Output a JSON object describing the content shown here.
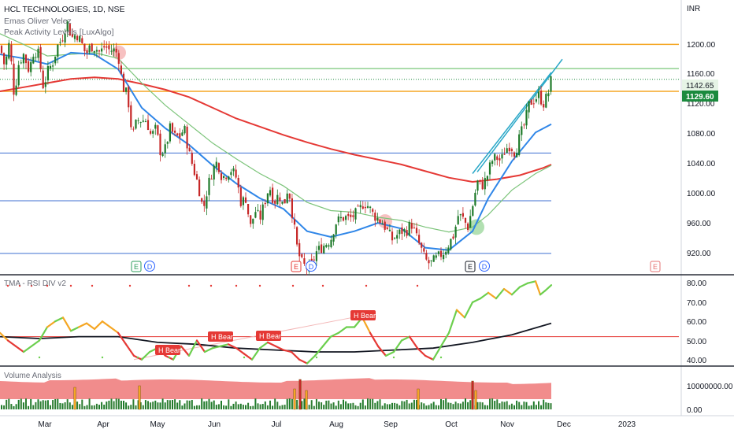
{
  "header": {
    "title": "HCL TECHNOLOGIES, 1D, NSE",
    "indicator_1": "Emas Oliver Velez",
    "indicator_2": "Peak Activity Levels [LuxAlgo]"
  },
  "colors": {
    "up": "#1f7a2a",
    "down": "#c62828",
    "ema_fast": "#2f86e8",
    "ema_mid": "#7cc47a",
    "ema_slow": "#e53935",
    "level_orange": "#f5a623",
    "level_green": "#8fd18f",
    "level_blue": "#3f6fd1",
    "channel": "#2ba8c8",
    "rsi_mid": "#e53935",
    "last_price_bg": "#1b8a3e",
    "level_label_bg": "#e6f4e6",
    "volume_band": "#f08080"
  },
  "price_pane": {
    "currency": "INR",
    "y_ticks": [
      "1200.00",
      "1160.00",
      "1120.00",
      "1080.00",
      "1040.00",
      "1000.00",
      "960.00",
      "920.00"
    ],
    "last_price": "1129.60",
    "level_label": "1142.65",
    "earnings_markers": [
      "E",
      "E",
      "E",
      "E"
    ],
    "dividend_markers": [
      "D",
      "D",
      "D"
    ]
  },
  "rsi_pane": {
    "title": "TMA - RSI DIV v2",
    "y_ticks": [
      "80.00",
      "70.00",
      "60.00",
      "50.00",
      "40.00"
    ],
    "labels": [
      "H Bear",
      "H Bear",
      "H Bear",
      "H Bear"
    ]
  },
  "volume_pane": {
    "title": "Volume Analysis",
    "y_ticks": [
      "10000000.00",
      "0.00"
    ]
  },
  "x_axis": {
    "labels": [
      "Mar",
      "Apr",
      "May",
      "Jun",
      "Jul",
      "Aug",
      "Sep",
      "Oct",
      "Nov",
      "Dec",
      "2023"
    ]
  },
  "chart_data": {
    "type": "candlestick",
    "title": "HCL TECHNOLOGIES, 1D, NSE",
    "ylim": [
      893,
      1226
    ],
    "horizontal_levels": [
      {
        "value": 1172,
        "color": "orange"
      },
      {
        "value": 1142.65,
        "color": "green"
      },
      {
        "value": 1115,
        "color": "orange"
      },
      {
        "value": 1040,
        "color": "blue"
      },
      {
        "value": 982,
        "color": "blue"
      },
      {
        "value": 918,
        "color": "blue"
      }
    ],
    "close_path": [
      [
        0,
        1170
      ],
      [
        6,
        1145
      ],
      [
        12,
        1175
      ],
      [
        18,
        1110
      ],
      [
        24,
        1150
      ],
      [
        30,
        1160
      ],
      [
        37,
        1140
      ],
      [
        43,
        1165
      ],
      [
        49,
        1160
      ],
      [
        55,
        1120
      ],
      [
        61,
        1140
      ],
      [
        67,
        1150
      ],
      [
        73,
        1170
      ],
      [
        79,
        1180
      ],
      [
        85,
        1200
      ],
      [
        91,
        1180
      ],
      [
        97,
        1185
      ],
      [
        103,
        1175
      ],
      [
        109,
        1160
      ],
      [
        115,
        1170
      ],
      [
        121,
        1168
      ],
      [
        127,
        1162
      ],
      [
        133,
        1170
      ],
      [
        139,
        1165
      ],
      [
        145,
        1165
      ],
      [
        150,
        1160
      ],
      [
        156,
        1120
      ],
      [
        162,
        1110
      ],
      [
        168,
        1060
      ],
      [
        174,
        1080
      ],
      [
        180,
        1080
      ],
      [
        186,
        1080
      ],
      [
        192,
        1060
      ],
      [
        198,
        1070
      ],
      [
        204,
        1040
      ],
      [
        210,
        1045
      ],
      [
        216,
        1070
      ],
      [
        222,
        1060
      ],
      [
        228,
        1060
      ],
      [
        234,
        1070
      ],
      [
        240,
        1040
      ],
      [
        246,
        1020
      ],
      [
        252,
        1000
      ],
      [
        258,
        970
      ],
      [
        264,
        1000
      ],
      [
        270,
        1020
      ],
      [
        276,
        1030
      ],
      [
        282,
        1010
      ],
      [
        288,
        1015
      ],
      [
        294,
        1020
      ],
      [
        300,
        1010
      ],
      [
        306,
        980
      ],
      [
        312,
        985
      ],
      [
        318,
        950
      ],
      [
        324,
        970
      ],
      [
        330,
        960
      ],
      [
        336,
        980
      ],
      [
        342,
        1000
      ],
      [
        348,
        980
      ],
      [
        354,
        990
      ],
      [
        360,
        975
      ],
      [
        366,
        1000
      ],
      [
        372,
        960
      ],
      [
        378,
        920
      ],
      [
        384,
        905
      ],
      [
        390,
        900
      ],
      [
        396,
        905
      ],
      [
        402,
        920
      ],
      [
        408,
        925
      ],
      [
        414,
        930
      ],
      [
        420,
        935
      ],
      [
        426,
        955
      ],
      [
        432,
        960
      ],
      [
        438,
        962
      ],
      [
        444,
        960
      ],
      [
        450,
        965
      ],
      [
        456,
        970
      ],
      [
        462,
        980
      ],
      [
        468,
        975
      ],
      [
        474,
        965
      ],
      [
        480,
        960
      ],
      [
        486,
        955
      ],
      [
        492,
        945
      ],
      [
        498,
        935
      ],
      [
        504,
        940
      ],
      [
        510,
        945
      ],
      [
        516,
        945
      ],
      [
        522,
        955
      ],
      [
        528,
        940
      ],
      [
        534,
        925
      ],
      [
        540,
        910
      ],
      [
        546,
        905
      ],
      [
        552,
        910
      ],
      [
        558,
        915
      ],
      [
        564,
        920
      ],
      [
        570,
        930
      ],
      [
        576,
        940
      ],
      [
        582,
        965
      ],
      [
        588,
        960
      ],
      [
        594,
        950
      ],
      [
        600,
        975
      ],
      [
        606,
        1005
      ],
      [
        612,
        1000
      ],
      [
        618,
        1010
      ],
      [
        624,
        1030
      ],
      [
        630,
        1035
      ],
      [
        636,
        1030
      ],
      [
        642,
        1045
      ],
      [
        648,
        1050
      ],
      [
        654,
        1040
      ],
      [
        660,
        1060
      ],
      [
        666,
        1075
      ],
      [
        672,
        1100
      ],
      [
        678,
        1105
      ],
      [
        684,
        1110
      ],
      [
        690,
        1100
      ],
      [
        696,
        1112
      ],
      [
        700,
        1130
      ]
    ],
    "ema_fast_path": [
      [
        0,
        1160
      ],
      [
        30,
        1155
      ],
      [
        60,
        1148
      ],
      [
        90,
        1162
      ],
      [
        120,
        1160
      ],
      [
        150,
        1142
      ],
      [
        180,
        1095
      ],
      [
        210,
        1070
      ],
      [
        240,
        1050
      ],
      [
        270,
        1025
      ],
      [
        300,
        1003
      ],
      [
        330,
        985
      ],
      [
        360,
        972
      ],
      [
        390,
        945
      ],
      [
        420,
        938
      ],
      [
        450,
        945
      ],
      [
        480,
        955
      ],
      [
        510,
        948
      ],
      [
        540,
        925
      ],
      [
        570,
        922
      ],
      [
        600,
        945
      ],
      [
        620,
        985
      ],
      [
        650,
        1030
      ],
      [
        680,
        1065
      ],
      [
        700,
        1075
      ]
    ],
    "ema_mid_path": [
      [
        0,
        1185
      ],
      [
        30,
        1172
      ],
      [
        60,
        1158
      ],
      [
        90,
        1160
      ],
      [
        120,
        1162
      ],
      [
        150,
        1155
      ],
      [
        180,
        1125
      ],
      [
        210,
        1098
      ],
      [
        240,
        1075
      ],
      [
        270,
        1052
      ],
      [
        300,
        1033
      ],
      [
        330,
        1015
      ],
      [
        360,
        1000
      ],
      [
        390,
        980
      ],
      [
        420,
        970
      ],
      [
        450,
        968
      ],
      [
        480,
        962
      ],
      [
        510,
        958
      ],
      [
        540,
        950
      ],
      [
        570,
        944
      ],
      [
        600,
        950
      ],
      [
        620,
        965
      ],
      [
        650,
        995
      ],
      [
        680,
        1015
      ],
      [
        700,
        1025
      ]
    ],
    "ema_slow_path": [
      [
        0,
        1115
      ],
      [
        30,
        1120
      ],
      [
        60,
        1125
      ],
      [
        90,
        1130
      ],
      [
        120,
        1132
      ],
      [
        150,
        1130
      ],
      [
        180,
        1124
      ],
      [
        210,
        1117
      ],
      [
        240,
        1108
      ],
      [
        270,
        1095
      ],
      [
        300,
        1082
      ],
      [
        330,
        1072
      ],
      [
        360,
        1062
      ],
      [
        390,
        1053
      ],
      [
        420,
        1045
      ],
      [
        450,
        1038
      ],
      [
        480,
        1032
      ],
      [
        510,
        1026
      ],
      [
        540,
        1018
      ],
      [
        570,
        1010
      ],
      [
        600,
        1005
      ],
      [
        630,
        1008
      ],
      [
        660,
        1013
      ],
      [
        690,
        1022
      ],
      [
        700,
        1026
      ]
    ],
    "rsi_ylim": [
      35,
      82
    ],
    "rsi_midline": 50,
    "rsi_path": [
      [
        0,
        52
      ],
      [
        10,
        48
      ],
      [
        20,
        45
      ],
      [
        30,
        42
      ],
      [
        40,
        45
      ],
      [
        50,
        48
      ],
      [
        60,
        55
      ],
      [
        70,
        58
      ],
      [
        80,
        60
      ],
      [
        90,
        53
      ],
      [
        100,
        55
      ],
      [
        110,
        57
      ],
      [
        120,
        54
      ],
      [
        130,
        58
      ],
      [
        140,
        55
      ],
      [
        150,
        52
      ],
      [
        160,
        46
      ],
      [
        170,
        40
      ],
      [
        180,
        38
      ],
      [
        190,
        42
      ],
      [
        200,
        44
      ],
      [
        210,
        40
      ],
      [
        220,
        38
      ],
      [
        230,
        45
      ],
      [
        240,
        40
      ],
      [
        250,
        48
      ],
      [
        260,
        42
      ],
      [
        270,
        44
      ],
      [
        280,
        45
      ],
      [
        290,
        46
      ],
      [
        300,
        44
      ],
      [
        310,
        41
      ],
      [
        320,
        38
      ],
      [
        330,
        44
      ],
      [
        340,
        47
      ],
      [
        350,
        45
      ],
      [
        360,
        43
      ],
      [
        370,
        42
      ],
      [
        380,
        38
      ],
      [
        390,
        36
      ],
      [
        400,
        40
      ],
      [
        410,
        45
      ],
      [
        420,
        50
      ],
      [
        430,
        52
      ],
      [
        440,
        55
      ],
      [
        450,
        55
      ],
      [
        460,
        60
      ],
      [
        470,
        52
      ],
      [
        480,
        45
      ],
      [
        490,
        40
      ],
      [
        500,
        42
      ],
      [
        510,
        48
      ],
      [
        520,
        50
      ],
      [
        530,
        44
      ],
      [
        540,
        40
      ],
      [
        550,
        38
      ],
      [
        560,
        45
      ],
      [
        570,
        52
      ],
      [
        580,
        64
      ],
      [
        590,
        60
      ],
      [
        600,
        68
      ],
      [
        610,
        70
      ],
      [
        620,
        73
      ],
      [
        630,
        70
      ],
      [
        640,
        75
      ],
      [
        650,
        72
      ],
      [
        660,
        76
      ],
      [
        670,
        78
      ],
      [
        680,
        79
      ],
      [
        686,
        72
      ],
      [
        692,
        74
      ],
      [
        700,
        77
      ]
    ],
    "rsi_signal_path": [
      [
        0,
        50
      ],
      [
        50,
        49
      ],
      [
        100,
        50
      ],
      [
        150,
        50
      ],
      [
        200,
        47
      ],
      [
        250,
        46
      ],
      [
        300,
        44
      ],
      [
        350,
        43
      ],
      [
        400,
        42
      ],
      [
        450,
        42
      ],
      [
        500,
        43
      ],
      [
        550,
        44
      ],
      [
        600,
        47
      ],
      [
        650,
        51
      ],
      [
        700,
        57
      ]
    ],
    "volume_series": "daily volume bars with orange/red spikes near Mar 1, Apr 12, Jul 13 (largest), Sep 12 and Oct 13"
  }
}
